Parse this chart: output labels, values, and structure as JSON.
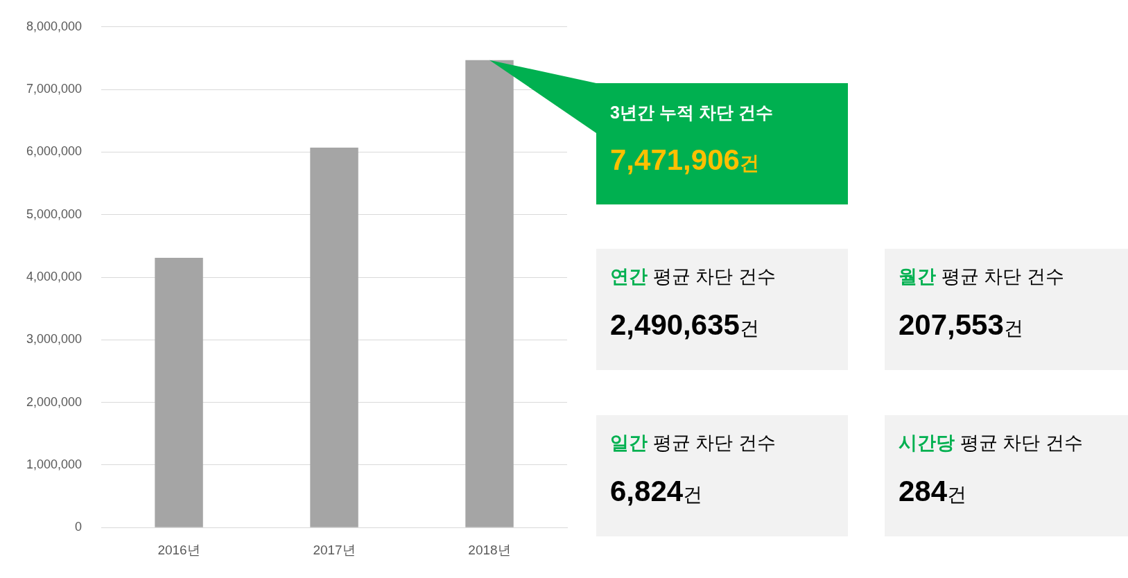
{
  "chart_data": {
    "type": "bar",
    "categories": [
      "2016년",
      "2017년",
      "2018년"
    ],
    "values": [
      4310000,
      6070000,
      7470000
    ],
    "color": "#a5a5a5",
    "ylim": [
      0,
      8000000
    ],
    "yticks": [
      0,
      {
        "value": 1000000,
        "label": "1,000,000"
      },
      {
        "value": 2000000,
        "label": "2,000,000"
      },
      {
        "value": 3000000,
        "label": "3,000,000"
      },
      {
        "value": 4000000,
        "label": "4,000,000"
      },
      {
        "value": 5000000,
        "label": "5,000,000"
      },
      {
        "value": 6000000,
        "label": "6,000,000"
      },
      {
        "value": 7000000,
        "label": "7,000,000"
      },
      {
        "value": 8000000,
        "label": "8,000,000"
      }
    ],
    "grid": "y",
    "annotations": [
      "3년간 누적 차단 건수",
      "7,471,906건",
      "연간 평균 차단 건수",
      "2,490,635건",
      "월간 평균 차단 건수",
      "207,553건",
      "일간 평균 차단 건수",
      "6,824건",
      "시간당 평균 차단 건수",
      "284건"
    ]
  }
}
